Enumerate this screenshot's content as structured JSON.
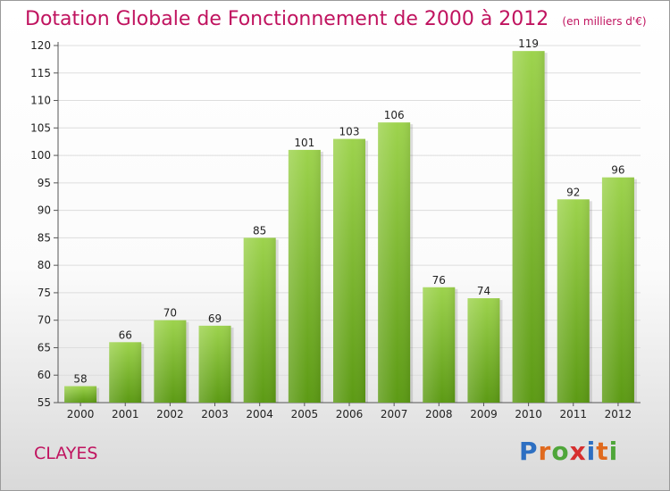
{
  "chart_data": {
    "type": "bar",
    "title": "Dotation Globale de Fonctionnement de 2000 à 2012",
    "subtitle": "(en milliers d'€)",
    "categories": [
      "2000",
      "2001",
      "2002",
      "2003",
      "2004",
      "2005",
      "2006",
      "2007",
      "2008",
      "2009",
      "2010",
      "2011",
      "2012"
    ],
    "values": [
      58,
      66,
      70,
      69,
      85,
      101,
      103,
      106,
      76,
      74,
      119,
      92,
      96
    ],
    "ylim": [
      55,
      120
    ],
    "yticks": [
      55,
      60,
      65,
      70,
      75,
      80,
      85,
      90,
      95,
      100,
      105,
      110,
      115,
      120
    ],
    "grid": true,
    "bar_color": "#7fc031",
    "legend": "none"
  },
  "footer": {
    "location": "CLAYES",
    "brand": "Proxiti"
  },
  "colors": {
    "title": "#c0135f",
    "brand_letters": [
      "#2d6fc2",
      "#e06a1e",
      "#4fa63a",
      "#d62f2f",
      "#2d6fc2",
      "#e06a1e",
      "#4fa63a"
    ]
  }
}
